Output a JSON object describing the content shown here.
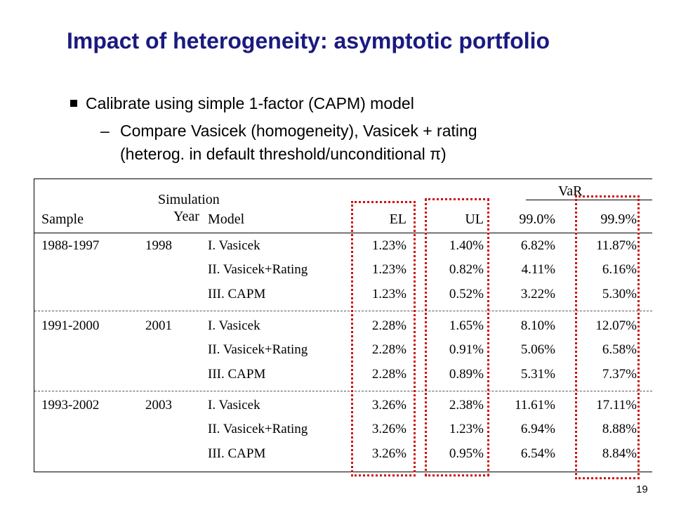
{
  "slide": {
    "title": "Impact of heterogeneity: asymptotic portfolio",
    "bullet1": "Calibrate using simple 1-factor (CAPM) model",
    "bullet2_dash": "–",
    "bullet2_line1": "Compare Vasicek (homogeneity), Vasicek + rating",
    "bullet2_line2": "(heterog. in default threshold/unconditional π)",
    "page_number": "19"
  },
  "table": {
    "headers": {
      "sample": "Sample",
      "simulation_top": "Simulation",
      "simulation_bottom": "Year",
      "model": "Model",
      "el": "EL",
      "ul": "UL",
      "var_group": "VaR",
      "var99": "99.0%",
      "var999": "99.9%"
    },
    "groups": [
      {
        "sample": "1988-1997",
        "year": "1998",
        "rows": [
          {
            "model": "I. Vasicek",
            "el": "1.23%",
            "ul": "1.40%",
            "var99": "6.82%",
            "var999": "11.87%"
          },
          {
            "model": "II. Vasicek+Rating",
            "el": "1.23%",
            "ul": "0.82%",
            "var99": "4.11%",
            "var999": "6.16%"
          },
          {
            "model": "III. CAPM",
            "el": "1.23%",
            "ul": "0.52%",
            "var99": "3.22%",
            "var999": "5.30%"
          }
        ]
      },
      {
        "sample": "1991-2000",
        "year": "2001",
        "rows": [
          {
            "model": "I. Vasicek",
            "el": "2.28%",
            "ul": "1.65%",
            "var99": "8.10%",
            "var999": "12.07%"
          },
          {
            "model": "II. Vasicek+Rating",
            "el": "2.28%",
            "ul": "0.91%",
            "var99": "5.06%",
            "var999": "6.58%"
          },
          {
            "model": "III. CAPM",
            "el": "2.28%",
            "ul": "0.89%",
            "var99": "5.31%",
            "var999": "7.37%"
          }
        ]
      },
      {
        "sample": "1993-2002",
        "year": "2003",
        "rows": [
          {
            "model": "I. Vasicek",
            "el": "3.26%",
            "ul": "2.38%",
            "var99": "11.61%",
            "var999": "17.11%"
          },
          {
            "model": "II. Vasicek+Rating",
            "el": "3.26%",
            "ul": "1.23%",
            "var99": "6.94%",
            "var999": "8.88%"
          },
          {
            "model": "III. CAPM",
            "el": "3.26%",
            "ul": "0.95%",
            "var99": "6.54%",
            "var999": "8.84%"
          }
        ]
      }
    ],
    "highlight_color": "#d01010"
  }
}
